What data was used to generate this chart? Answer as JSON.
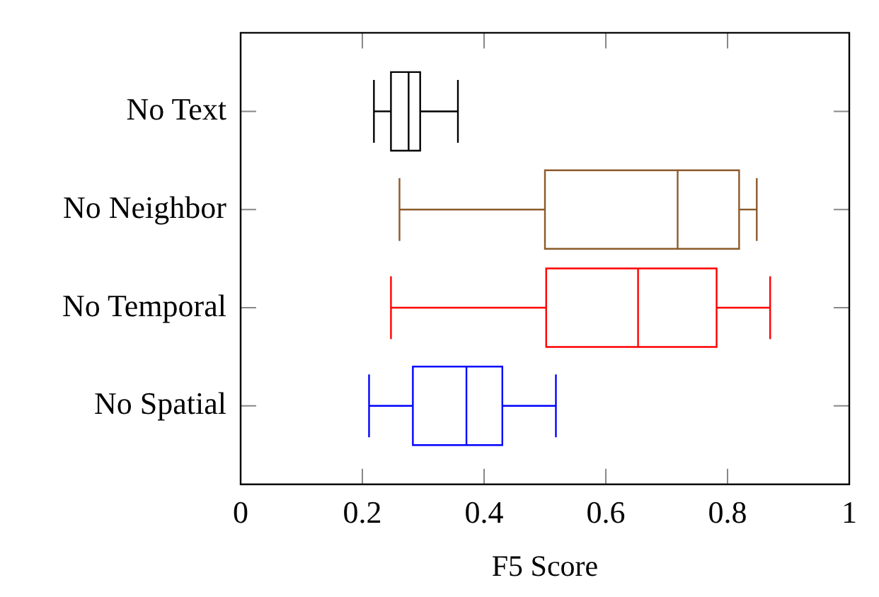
{
  "chart_data": {
    "type": "box",
    "orientation": "horizontal",
    "categories": [
      "No Text",
      "No Neighbor",
      "No Temporal",
      "No Spatial"
    ],
    "boxes": [
      {
        "low": 0.219,
        "q1": 0.247,
        "median": 0.276,
        "q3": 0.295,
        "high": 0.357
      },
      {
        "low": 0.261,
        "q1": 0.5,
        "median": 0.718,
        "q3": 0.819,
        "high": 0.848
      },
      {
        "low": 0.247,
        "q1": 0.502,
        "median": 0.653,
        "q3": 0.782,
        "high": 0.87
      },
      {
        "low": 0.211,
        "q1": 0.283,
        "median": 0.371,
        "q3": 0.43,
        "high": 0.518
      }
    ],
    "colors": [
      "#000000",
      "#8b5a2b",
      "#ff0000",
      "#0000ff"
    ],
    "xlim": [
      0,
      1
    ],
    "xticks": [
      0,
      0.2,
      0.4,
      0.6,
      0.8,
      1
    ],
    "xlabel": "F5 Score",
    "grid": false,
    "legend": false
  }
}
